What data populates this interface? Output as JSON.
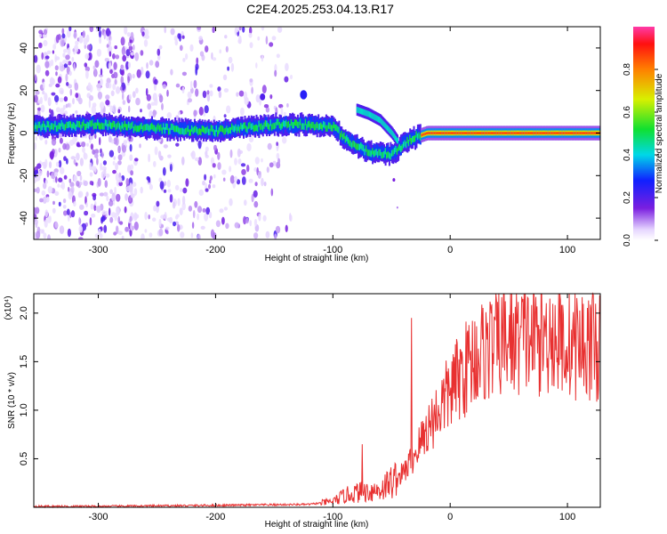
{
  "title": "C2E4.2025.253.04.13.R17",
  "colors": {
    "snr_line": "#e83030",
    "axis": "#000000",
    "background": "#ffffff"
  },
  "chart_data": [
    {
      "type": "heatmap",
      "name": "spectrogram",
      "xlabel": "Height of straight line (km)",
      "ylabel": "Frequency (Hz)",
      "xlim": [
        -355,
        128
      ],
      "ylim": [
        -50,
        50
      ],
      "xticks": [
        -300,
        -200,
        -100,
        0,
        100
      ],
      "yticks": [
        -40,
        -20,
        0,
        20,
        40
      ],
      "colorbar": {
        "label": "Normalized spectral amplitude",
        "range": [
          0,
          1
        ],
        "ticks": [
          "0.0",
          "0.2",
          "0.4",
          "0.6",
          "0.8"
        ],
        "tick_values": [
          0,
          0.2,
          0.4,
          0.6,
          0.8
        ]
      },
      "main_track": [
        {
          "x": -350,
          "y": 3
        },
        {
          "x": -300,
          "y": 4
        },
        {
          "x": -250,
          "y": 2
        },
        {
          "x": -200,
          "y": 1
        },
        {
          "x": -150,
          "y": 4
        },
        {
          "x": -120,
          "y": 4
        },
        {
          "x": -100,
          "y": 3
        },
        {
          "x": -90,
          "y": -3
        },
        {
          "x": -70,
          "y": -9
        },
        {
          "x": -50,
          "y": -10
        },
        {
          "x": -40,
          "y": -5
        },
        {
          "x": -30,
          "y": -2
        },
        {
          "x": -20,
          "y": 0
        },
        {
          "x": 0,
          "y": 0
        },
        {
          "x": 50,
          "y": 0
        },
        {
          "x": 128,
          "y": 0
        }
      ],
      "branch_track": [
        {
          "x": -80,
          "y": 11
        },
        {
          "x": -70,
          "y": 9
        },
        {
          "x": -60,
          "y": 6
        },
        {
          "x": -50,
          "y": 0
        },
        {
          "x": -45,
          "y": -4
        }
      ]
    },
    {
      "type": "line",
      "name": "snr",
      "xlabel": "Height of straight line (km)",
      "ylabel": "SNR (10 * v/v)",
      "yscale_note": "(x10⁴)",
      "xlim": [
        -355,
        128
      ],
      "ylim": [
        0,
        2.2
      ],
      "xticks": [
        -300,
        -200,
        -100,
        0,
        100
      ],
      "yticks": [
        "0.5",
        "1.0",
        "1.5",
        "2.0"
      ],
      "ytick_values": [
        0.5,
        1.0,
        1.5,
        2.0
      ],
      "series_trend": [
        {
          "x": -355,
          "y": 0.01
        },
        {
          "x": -300,
          "y": 0.01
        },
        {
          "x": -200,
          "y": 0.02
        },
        {
          "x": -120,
          "y": 0.03
        },
        {
          "x": -100,
          "y": 0.06
        },
        {
          "x": -90,
          "y": 0.12
        },
        {
          "x": -80,
          "y": 0.15
        },
        {
          "x": -60,
          "y": 0.18
        },
        {
          "x": -40,
          "y": 0.35
        },
        {
          "x": -30,
          "y": 0.55
        },
        {
          "x": -20,
          "y": 0.8
        },
        {
          "x": -10,
          "y": 1.0
        },
        {
          "x": 0,
          "y": 1.2
        },
        {
          "x": 20,
          "y": 1.55
        },
        {
          "x": 40,
          "y": 1.7
        },
        {
          "x": 60,
          "y": 1.75
        },
        {
          "x": 80,
          "y": 1.75
        },
        {
          "x": 100,
          "y": 1.7
        },
        {
          "x": 128,
          "y": 1.65
        }
      ],
      "spikes": [
        {
          "x": -75,
          "y": 0.65
        },
        {
          "x": -33,
          "y": 1.95
        },
        {
          "x": 85,
          "y": 2.15
        },
        {
          "x": 120,
          "y": 2.05
        }
      ]
    }
  ]
}
